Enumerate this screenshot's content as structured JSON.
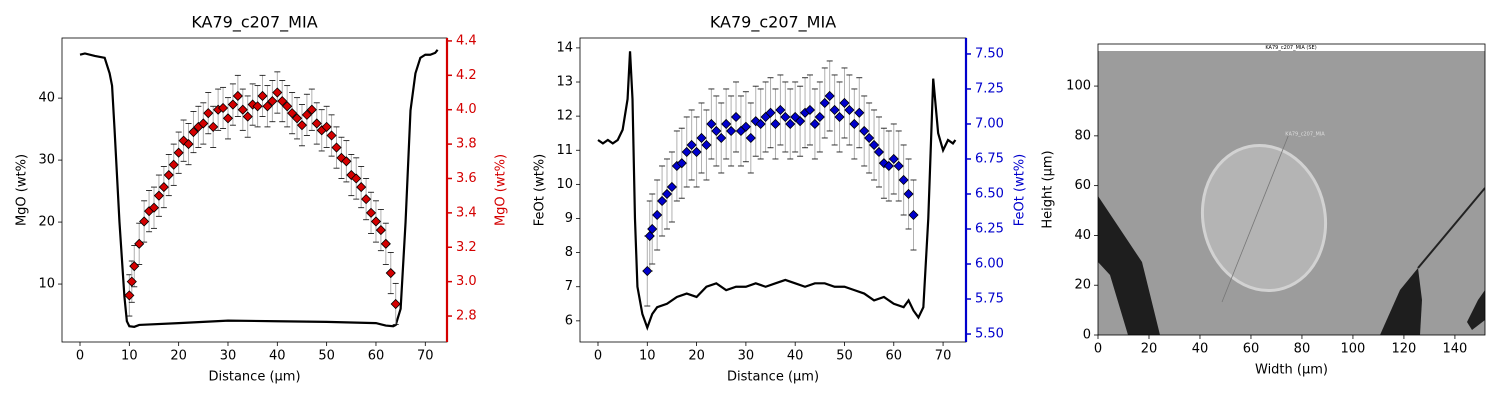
{
  "chart_data": [
    {
      "type": "profile",
      "title": "KA79_c207_MIA",
      "xlabel": "Distance (µm)",
      "ylabel": "MgO (wt%)",
      "y2label": "MgO (wt%)",
      "y2color": "#d40000",
      "xlim": [
        -3.65,
        74.4
      ],
      "ylim": [
        0.65,
        49.7
      ],
      "y2lim": [
        2.649,
        4.417
      ],
      "xticks": [
        0,
        10,
        20,
        30,
        40,
        50,
        60,
        70
      ],
      "yticks": [
        10,
        20,
        30,
        40
      ],
      "y2ticks": [
        {
          "value": 2.8,
          "label": "2.8"
        },
        {
          "value": 3,
          "label": "3.0"
        },
        {
          "value": 3.2,
          "label": "3.2"
        },
        {
          "value": 3.4,
          "label": "3.4"
        },
        {
          "value": 3.6,
          "label": "3.6"
        },
        {
          "value": 3.8,
          "label": "3.8"
        },
        {
          "value": 4,
          "label": "4.0"
        },
        {
          "value": 4.2,
          "label": "4.2"
        },
        {
          "value": 4.4,
          "label": "4.4"
        }
      ],
      "series": [
        {
          "color": "#000000",
          "x": [
            0,
            1,
            3,
            5,
            6,
            6.5,
            7,
            8,
            9,
            9.5,
            10,
            11,
            12,
            20,
            30,
            40,
            50,
            60,
            62,
            63.5,
            64,
            65,
            66,
            67,
            68,
            69,
            70,
            71,
            72,
            72.5
          ],
          "values": [
            47,
            47.2,
            46.8,
            46.5,
            44,
            42,
            35,
            20,
            8,
            4,
            3.2,
            3.1,
            3.4,
            3.7,
            4.1,
            4.0,
            3.9,
            3.7,
            3.3,
            3.2,
            3.4,
            6,
            20,
            38,
            44,
            46.5,
            47,
            47,
            47.3,
            47.8
          ]
        },
        {
          "color": "#d40000",
          "axis": "y2",
          "x": [
            10,
            10.5,
            11,
            12,
            13,
            14,
            15,
            16,
            17,
            18,
            19,
            20,
            21,
            22,
            23,
            24,
            25,
            26,
            27,
            28,
            29,
            30,
            31,
            32,
            33,
            34,
            35,
            36,
            37,
            38,
            39,
            40,
            41,
            42,
            43,
            44,
            45,
            46,
            47,
            48,
            49,
            50,
            51,
            52,
            53,
            54,
            55,
            56,
            57,
            58,
            59,
            60,
            61,
            62,
            63,
            64
          ],
          "values": [
            2.92,
            3.0,
            3.09,
            3.22,
            3.35,
            3.41,
            3.43,
            3.5,
            3.55,
            3.62,
            3.68,
            3.75,
            3.82,
            3.8,
            3.87,
            3.9,
            3.92,
            3.98,
            3.9,
            4.0,
            4.01,
            3.95,
            4.03,
            4.08,
            4.0,
            3.96,
            4.03,
            4.02,
            4.08,
            4.02,
            4.05,
            4.1,
            4.05,
            4.02,
            3.98,
            3.95,
            3.91,
            3.97,
            4.0,
            3.92,
            3.88,
            3.9,
            3.85,
            3.78,
            3.72,
            3.7,
            3.62,
            3.6,
            3.55,
            3.48,
            3.4,
            3.35,
            3.3,
            3.22,
            3.05,
            2.87
          ],
          "errors": [
            0.12,
            0.12,
            0.12,
            0.12,
            0.12,
            0.12,
            0.12,
            0.12,
            0.12,
            0.12,
            0.12,
            0.12,
            0.12,
            0.12,
            0.12,
            0.12,
            0.12,
            0.12,
            0.12,
            0.12,
            0.12,
            0.12,
            0.12,
            0.12,
            0.12,
            0.12,
            0.12,
            0.12,
            0.12,
            0.12,
            0.12,
            0.12,
            0.12,
            0.12,
            0.12,
            0.12,
            0.12,
            0.12,
            0.12,
            0.12,
            0.12,
            0.12,
            0.12,
            0.12,
            0.12,
            0.12,
            0.12,
            0.12,
            0.12,
            0.12,
            0.12,
            0.12,
            0.12,
            0.12,
            0.12,
            0.12
          ]
        }
      ]
    },
    {
      "type": "profile",
      "title": "KA79_c207_MIA",
      "xlabel": "Distance (µm)",
      "ylabel": "FeOt (wt%)",
      "y2label": "FeOt (wt%)",
      "y2color": "#0000cc",
      "xlim": [
        -3.65,
        74.65
      ],
      "ylim": [
        5.38,
        14.29
      ],
      "y2lim": [
        5.443,
        7.614
      ],
      "xticks": [
        0,
        10,
        20,
        30,
        40,
        50,
        60,
        70
      ],
      "yticks": [
        6,
        7,
        8,
        9,
        10,
        11,
        12,
        13,
        14
      ],
      "y2ticks": [
        {
          "value": 5.5,
          "label": "5.50"
        },
        {
          "value": 5.75,
          "label": "5.75"
        },
        {
          "value": 6,
          "label": "6.00"
        },
        {
          "value": 6.25,
          "label": "6.25"
        },
        {
          "value": 6.5,
          "label": "6.50"
        },
        {
          "value": 6.75,
          "label": "6.75"
        },
        {
          "value": 7,
          "label": "7.00"
        },
        {
          "value": 7.25,
          "label": "7.25"
        },
        {
          "value": 7.5,
          "label": "7.50"
        }
      ],
      "series": [
        {
          "color": "#000000",
          "x": [
            0,
            1,
            2,
            3,
            4,
            5,
            6,
            6.5,
            7,
            7.5,
            8,
            9,
            10,
            11,
            12,
            14,
            16,
            18,
            20,
            22,
            24,
            26,
            28,
            30,
            32,
            34,
            36,
            38,
            40,
            42,
            44,
            46,
            48,
            50,
            52,
            54,
            56,
            58,
            60,
            62,
            63,
            64,
            65,
            66,
            67,
            68,
            69,
            70,
            71,
            72,
            72.5
          ],
          "values": [
            11.3,
            11.2,
            11.3,
            11.2,
            11.3,
            11.6,
            12.5,
            13.9,
            12.5,
            9,
            7,
            6.2,
            5.8,
            6.2,
            6.4,
            6.5,
            6.7,
            6.8,
            6.7,
            7.0,
            7.1,
            6.9,
            7.0,
            7.0,
            7.1,
            7.0,
            7.1,
            7.2,
            7.1,
            7.0,
            7.1,
            7.1,
            7.0,
            7.0,
            6.9,
            6.8,
            6.6,
            6.7,
            6.5,
            6.4,
            6.6,
            6.3,
            6.1,
            6.4,
            9,
            13.1,
            11.5,
            11.0,
            11.3,
            11.2,
            11.3
          ]
        },
        {
          "color": "#0000cc",
          "axis": "y2",
          "x": [
            10,
            10.5,
            11,
            12,
            13,
            14,
            15,
            16,
            17,
            18,
            19,
            20,
            21,
            22,
            23,
            24,
            25,
            26,
            27,
            28,
            29,
            30,
            31,
            32,
            33,
            34,
            35,
            36,
            37,
            38,
            39,
            40,
            41,
            42,
            43,
            44,
            45,
            46,
            47,
            48,
            49,
            50,
            51,
            52,
            53,
            54,
            55,
            56,
            57,
            58,
            59,
            60,
            61,
            62,
            63,
            64
          ],
          "values": [
            5.95,
            6.2,
            6.25,
            6.35,
            6.45,
            6.5,
            6.55,
            6.7,
            6.72,
            6.8,
            6.85,
            6.8,
            6.9,
            6.85,
            7.0,
            6.95,
            6.9,
            7.0,
            6.95,
            7.05,
            6.95,
            6.98,
            6.9,
            7.02,
            7.0,
            7.05,
            7.08,
            7.0,
            7.1,
            7.05,
            7.0,
            7.05,
            7.02,
            7.08,
            7.1,
            7.0,
            7.05,
            7.15,
            7.2,
            7.1,
            7.05,
            7.15,
            7.1,
            7.0,
            7.08,
            6.95,
            6.9,
            6.85,
            6.8,
            6.72,
            6.7,
            6.75,
            6.7,
            6.6,
            6.5,
            6.35
          ],
          "errors": [
            0.25,
            0.25,
            0.25,
            0.25,
            0.25,
            0.25,
            0.25,
            0.25,
            0.25,
            0.25,
            0.25,
            0.25,
            0.25,
            0.25,
            0.25,
            0.25,
            0.25,
            0.25,
            0.25,
            0.25,
            0.25,
            0.25,
            0.25,
            0.25,
            0.25,
            0.25,
            0.25,
            0.25,
            0.25,
            0.25,
            0.25,
            0.25,
            0.25,
            0.25,
            0.25,
            0.25,
            0.25,
            0.25,
            0.25,
            0.25,
            0.25,
            0.25,
            0.25,
            0.25,
            0.25,
            0.25,
            0.25,
            0.25,
            0.25,
            0.25,
            0.25,
            0.25,
            0.25,
            0.25,
            0.25,
            0.25
          ]
        }
      ]
    },
    {
      "type": "image",
      "caption": "KA79_c207_MIA (SE)",
      "line_label": "KA79_c207_MIA",
      "xlabel": "Width (µm)",
      "ylabel": "Height (µm)",
      "xlim": [
        0,
        151.8
      ],
      "ylim": [
        0,
        116.9
      ],
      "xticks": [
        0,
        20,
        40,
        60,
        80,
        100,
        120,
        140
      ],
      "yticks": [
        0,
        20,
        40,
        60,
        80,
        100
      ]
    }
  ]
}
